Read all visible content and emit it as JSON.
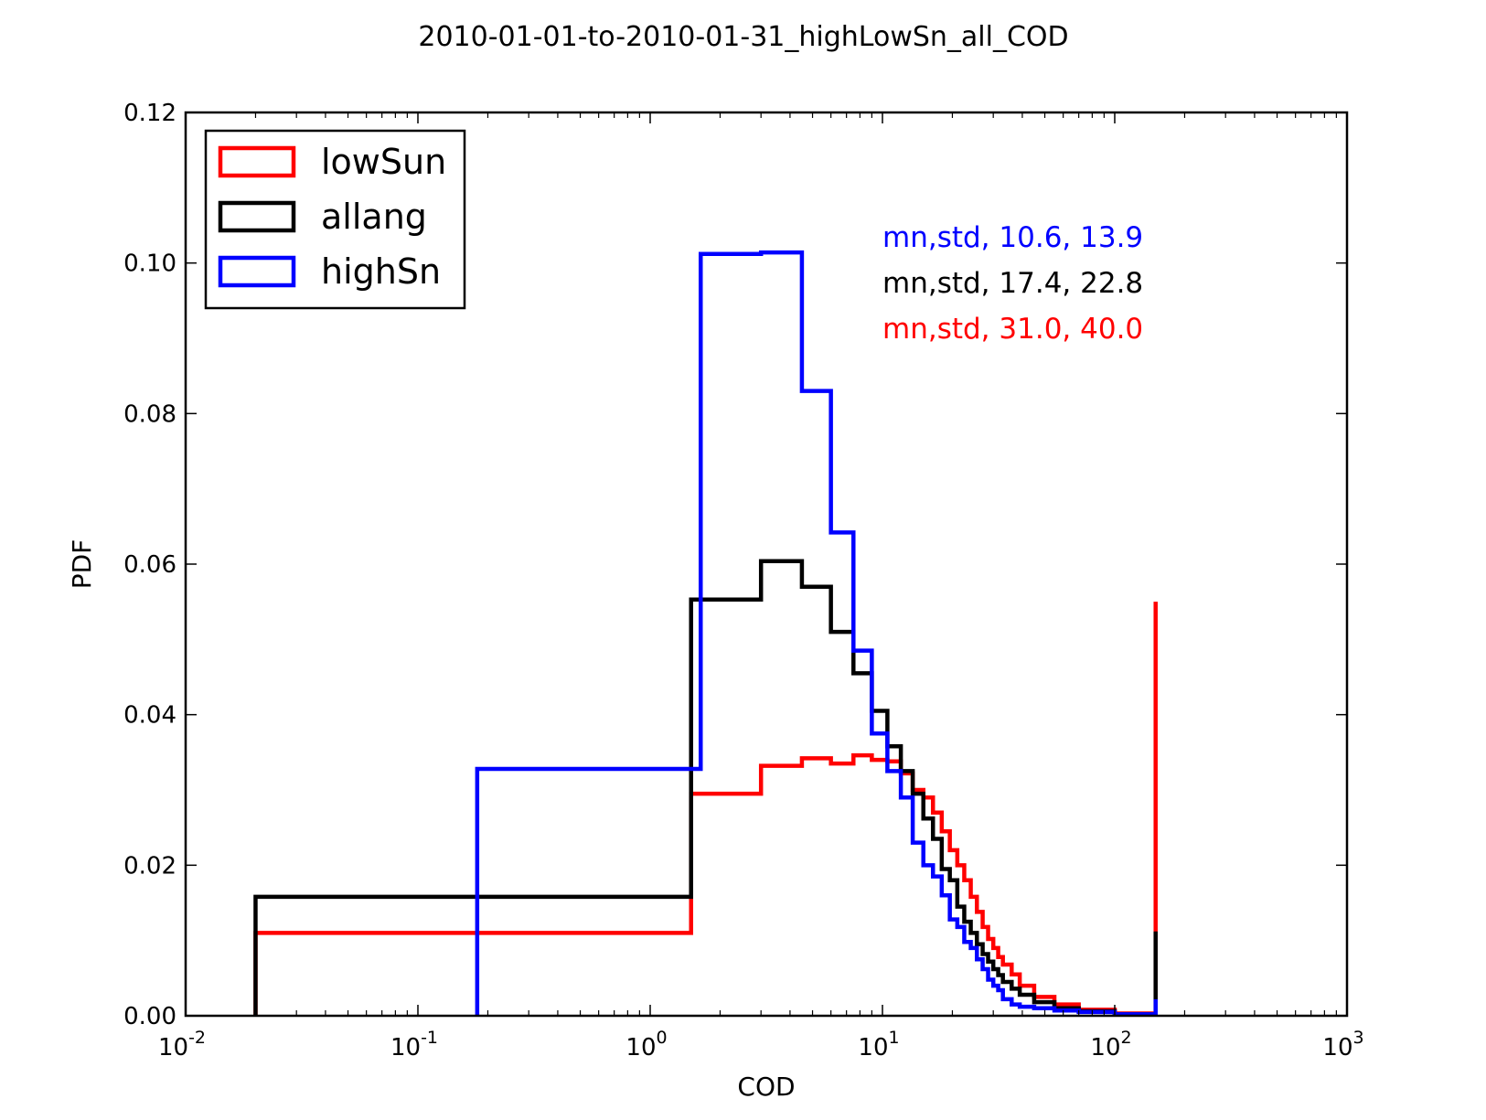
{
  "chart_data": {
    "type": "histogram-step",
    "title": "2010-01-01-to-2010-01-31_highLowSn_all_COD",
    "xlabel": "COD",
    "ylabel": "PDF",
    "xscale": "log",
    "xlim": [
      0.01,
      1000
    ],
    "ylim": [
      0,
      0.12
    ],
    "x_ticks": [
      {
        "value": 0.01,
        "base": "10",
        "exp": "-2"
      },
      {
        "value": 0.1,
        "base": "10",
        "exp": "-1"
      },
      {
        "value": 1,
        "base": "10",
        "exp": "0"
      },
      {
        "value": 10,
        "base": "10",
        "exp": "1"
      },
      {
        "value": 100,
        "base": "10",
        "exp": "2"
      },
      {
        "value": 1000,
        "base": "10",
        "exp": "3"
      }
    ],
    "y_ticks": [
      {
        "value": 0.0,
        "label": "0.00"
      },
      {
        "value": 0.02,
        "label": "0.02"
      },
      {
        "value": 0.04,
        "label": "0.04"
      },
      {
        "value": 0.06,
        "label": "0.06"
      },
      {
        "value": 0.08,
        "label": "0.08"
      },
      {
        "value": 0.1,
        "label": "0.10"
      },
      {
        "value": 0.12,
        "label": "0.12"
      }
    ],
    "grid": false,
    "legend_position": "top-left",
    "series": [
      {
        "name": "lowSun",
        "color": "#ff0000",
        "edges": [
          0.02,
          1.5,
          3.0,
          4.5,
          6.0,
          7.5,
          9.0,
          10.5,
          12.0,
          13.5,
          15.0,
          16.5,
          18.0,
          19.5,
          21.0,
          22.5,
          24.0,
          25.5,
          27.0,
          28.5,
          30.0,
          31.5,
          33.0,
          36.0,
          39.0,
          45.0,
          55.0,
          70.0,
          100.0,
          150.0
        ],
        "values": [
          0.011,
          0.0295,
          0.0332,
          0.0342,
          0.0335,
          0.0346,
          0.034,
          0.0338,
          0.0322,
          0.03,
          0.029,
          0.027,
          0.0245,
          0.022,
          0.02,
          0.018,
          0.0158,
          0.0138,
          0.0118,
          0.0102,
          0.009,
          0.0078,
          0.0068,
          0.0055,
          0.004,
          0.0025,
          0.0015,
          0.0008,
          0.0003
        ],
        "spike": {
          "x": 150.0,
          "value": 0.055
        },
        "annotation": "mn,std, 31.0, 40.0"
      },
      {
        "name": "allang",
        "color": "#000000",
        "edges": [
          0.02,
          1.5,
          3.0,
          4.5,
          6.0,
          7.5,
          9.0,
          10.5,
          12.0,
          13.5,
          15.0,
          16.5,
          18.0,
          19.5,
          21.0,
          22.5,
          24.0,
          25.5,
          27.0,
          28.5,
          30.0,
          31.5,
          33.0,
          36.0,
          39.0,
          45.0,
          55.0,
          70.0,
          100.0,
          150.0
        ],
        "values": [
          0.0158,
          0.0553,
          0.0604,
          0.057,
          0.051,
          0.0455,
          0.0405,
          0.0358,
          0.0325,
          0.0295,
          0.0262,
          0.0235,
          0.0195,
          0.018,
          0.0145,
          0.0125,
          0.011,
          0.0095,
          0.0082,
          0.0072,
          0.0062,
          0.0054,
          0.0045,
          0.0036,
          0.0028,
          0.0018,
          0.001,
          0.0006,
          0.0002
        ],
        "spike": {
          "x": 150.0,
          "value": 0.0112
        },
        "annotation": "mn,std, 17.4, 22.8"
      },
      {
        "name": "highSn",
        "color": "#0000ff",
        "edges": [
          0.18,
          1.65,
          3.0,
          4.5,
          6.0,
          7.5,
          9.0,
          10.5,
          12.0,
          13.5,
          15.0,
          16.5,
          18.0,
          19.5,
          21.0,
          22.5,
          24.0,
          25.5,
          27.0,
          28.5,
          30.0,
          31.5,
          33.0,
          36.0,
          39.0,
          45.0,
          55.0,
          70.0,
          100.0,
          150.0
        ],
        "values": [
          0.0328,
          0.1012,
          0.1014,
          0.083,
          0.0642,
          0.0485,
          0.0375,
          0.0325,
          0.029,
          0.023,
          0.02,
          0.0185,
          0.016,
          0.0128,
          0.0118,
          0.0098,
          0.009,
          0.0075,
          0.0062,
          0.0048,
          0.004,
          0.0034,
          0.0022,
          0.0015,
          0.0012,
          0.001,
          0.0007,
          0.0005,
          0.0002
        ],
        "spike": {
          "x": 150.0,
          "value": 0.0022
        },
        "annotation": "mn,std, 10.6, 13.9"
      }
    ]
  }
}
